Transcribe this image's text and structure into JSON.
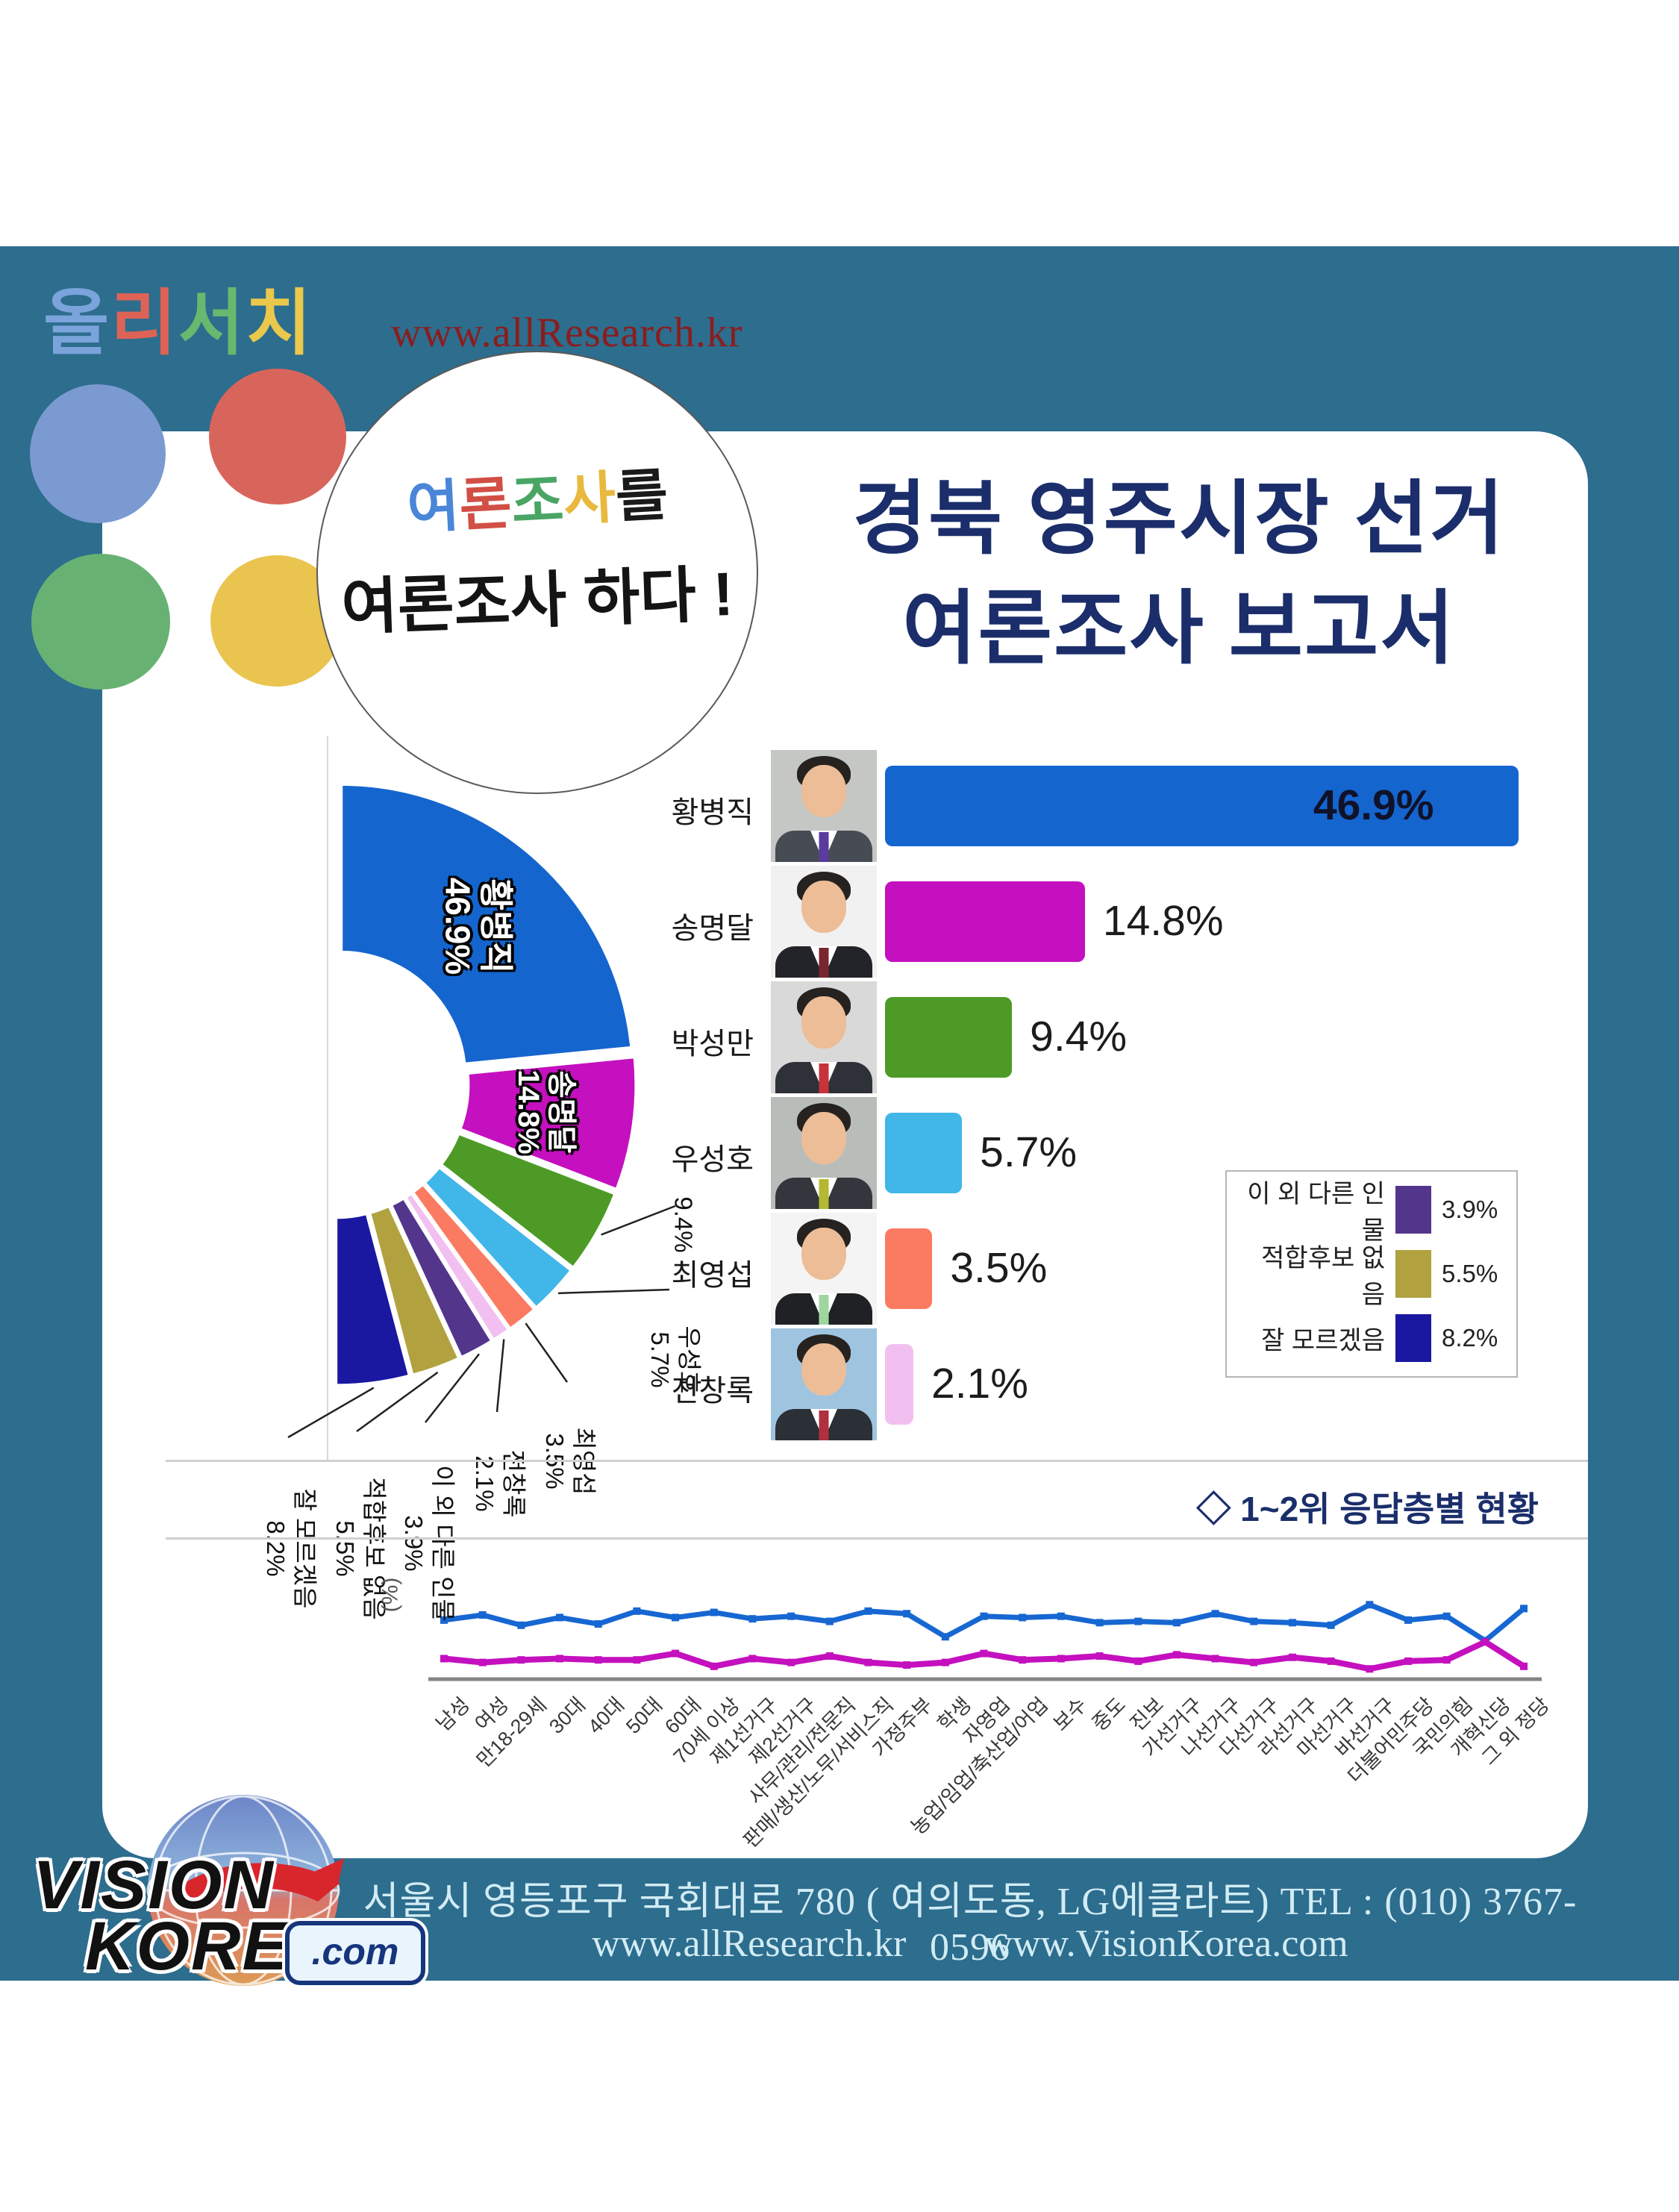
{
  "brand": {
    "chars": [
      {
        "ch": "올",
        "color": "#7BA3DC"
      },
      {
        "ch": "리",
        "color": "#DC6355"
      },
      {
        "ch": "서",
        "color": "#66B96E"
      },
      {
        "ch": "치",
        "color": "#E9C84C"
      }
    ],
    "url": "www.allResearch.kr"
  },
  "bubble": {
    "line1": [
      {
        "ch": "여",
        "color": "#4A86D8"
      },
      {
        "ch": "론",
        "color": "#D14F45"
      },
      {
        "ch": "조",
        "color": "#4AA564"
      },
      {
        "ch": "사",
        "color": "#E8B93E"
      },
      {
        "ch": "를",
        "color": "#1A1A1A"
      }
    ],
    "line2": "여론조사 하다 !"
  },
  "title": {
    "line1": "경북 영주시장 선거",
    "line2": "여론조사 보고서",
    "color": "#1B2E6B"
  },
  "poll": {
    "candidates": [
      {
        "name": "황병직",
        "value": 46.9,
        "label": "46.9%",
        "color": "#1565CF",
        "photo": {
          "bg": "#c5c7c4",
          "suit": "#474c54",
          "tie": "#5A3B9E"
        }
      },
      {
        "name": "송명달",
        "value": 14.8,
        "label": "14.8%",
        "color": "#C410BE",
        "photo": {
          "bg": "#f1f1f1",
          "suit": "#23242a",
          "tie": "#7A2630"
        }
      },
      {
        "name": "박성만",
        "value": 9.4,
        "label": "9.4%",
        "color": "#4D9B26",
        "photo": {
          "bg": "#d9d9d9",
          "suit": "#2e3138",
          "tie": "#C8323A"
        }
      },
      {
        "name": "우성호",
        "value": 5.7,
        "label": "5.7%",
        "color": "#41B6E8",
        "photo": {
          "bg": "#b9bdb9",
          "suit": "#33363c",
          "tie": "#B5B832"
        }
      },
      {
        "name": "최영섭",
        "value": 3.5,
        "label": "3.5%",
        "color": "#FA7B61",
        "photo": {
          "bg": "#f4f4f4",
          "suit": "#1f2125",
          "tie": "#9FD6A0"
        }
      },
      {
        "name": "전창록",
        "value": 2.1,
        "label": "2.1%",
        "color": "#F2C0F0",
        "photo": {
          "bg": "#9fc4e0",
          "suit": "#2b2f36",
          "tie": "#B03040"
        }
      }
    ],
    "others": [
      {
        "name": "이 외 다른 인물",
        "value": 3.9,
        "label": "3.9%",
        "color": "#53358C"
      },
      {
        "name": "적합후보 없음",
        "value": 5.5,
        "label": "5.5%",
        "color": "#B1A23F"
      },
      {
        "name": "잘 모르겠음",
        "value": 8.2,
        "label": "8.2%",
        "color": "#1A17A0"
      }
    ]
  },
  "section2": {
    "header": "◇ 1~2위 응답층별 현황"
  },
  "chart_data": [
    {
      "type": "pie",
      "subtype": "half-donut rotated 90deg (semicircle opens to the left, labels rotated)",
      "labels": [
        "황병직",
        "송명달",
        "박성만",
        "우성호",
        "최영섭",
        "전창록",
        "이 외 다른 인물",
        "적합후보 없음",
        "잘 모르겠음"
      ],
      "values": [
        46.9,
        14.8,
        9.4,
        5.7,
        3.5,
        2.1,
        3.9,
        5.5,
        8.2
      ],
      "colors": [
        "#1565CF",
        "#C410BE",
        "#4D9B26",
        "#41B6E8",
        "#FA7B61",
        "#F2C0F0",
        "#53358C",
        "#B1A23F",
        "#1A17A0"
      ],
      "unit": "%"
    },
    {
      "type": "bar",
      "orientation": "horizontal",
      "categories": [
        "황병직",
        "송명달",
        "박성만",
        "우성호",
        "최영섭",
        "전창록"
      ],
      "values": [
        46.9,
        14.8,
        9.4,
        5.7,
        3.5,
        2.1
      ],
      "data_labels": [
        "46.9%",
        "14.8%",
        "9.4%",
        "5.7%",
        "3.5%",
        "2.1%"
      ],
      "colors": [
        "#1565CF",
        "#C410BE",
        "#4D9B26",
        "#41B6E8",
        "#FA7B61",
        "#F2C0F0"
      ],
      "unit": "%"
    },
    {
      "type": "line",
      "title": "1~2위 응답층별 현황",
      "ylabel": "(%)",
      "ylim": [
        0,
        70
      ],
      "grid": false,
      "legend_position": "none",
      "categories": [
        "남성",
        "여성",
        "만18-29세",
        "30대",
        "40대",
        "50대",
        "60대",
        "70세 이상",
        "제1선거구",
        "제2선거구",
        "사무/관리/전문직",
        "판매/생산/노무/서비스직",
        "가정주부",
        "학생",
        "자영업",
        "농업/임업/축산업/어업",
        "보수",
        "중도",
        "진보",
        "가선거구",
        "나선거구",
        "다선거구",
        "라선거구",
        "마선거구",
        "바선거구",
        "더불어민주당",
        "국민의힘",
        "개혁신당",
        "그 외 정당"
      ],
      "series": [
        {
          "name": "황병직",
          "color": "#1767D2",
          "values": [
            46,
            50,
            42,
            48,
            43,
            53,
            48,
            52,
            47,
            49,
            45,
            53,
            51,
            33,
            49,
            48,
            49,
            44,
            45,
            44,
            51,
            45,
            44,
            42,
            58,
            46,
            49,
            30,
            55
          ]
        },
        {
          "name": "송명달",
          "color": "#C410BE",
          "values": [
            16,
            13,
            15,
            16,
            15,
            15,
            20,
            10,
            16,
            13,
            18,
            13,
            11,
            13,
            20,
            15,
            16,
            18,
            14,
            19,
            16,
            13,
            17,
            14,
            8,
            14,
            15,
            29,
            10
          ]
        }
      ]
    }
  ],
  "footer": {
    "address": "서울시 영등포구 국회대로 780 ( 여의도동, LG에클라트)  TEL : (010) 3767-0596",
    "url1": "www.allResearch.kr",
    "url2": "www.VisionKorea.com",
    "logo": {
      "word1": "VISION",
      "word2": "KOREA",
      "badge": ".com"
    }
  }
}
